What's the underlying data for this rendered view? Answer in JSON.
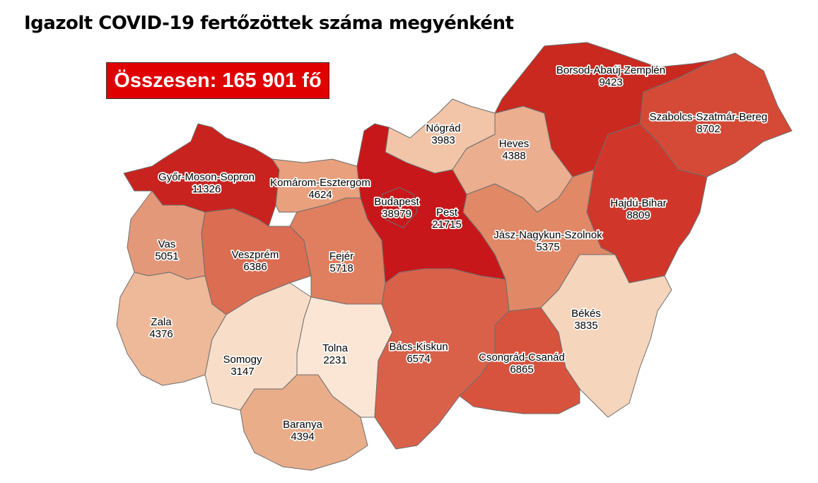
{
  "title": "Igazolt COVID-19 fertőzöttek száma megyénként",
  "total_label": "Összesen: 165 901 fő",
  "counties": [
    {
      "id": "gyor",
      "name": "Győr-Moson-Sopron",
      "value": "11326",
      "color": "#c9231f"
    },
    {
      "id": "komarom",
      "name": "Komárom-Esztergom",
      "value": "4624",
      "color": "#e8a07d"
    },
    {
      "id": "vas",
      "name": "Vas",
      "value": "5051",
      "color": "#e4987a"
    },
    {
      "id": "veszprem",
      "name": "Veszprém",
      "value": "6386",
      "color": "#da6d52"
    },
    {
      "id": "fejer",
      "name": "Fejér",
      "value": "5718",
      "color": "#e07f5f"
    },
    {
      "id": "zala",
      "name": "Zala",
      "value": "4376",
      "color": "#eeb999"
    },
    {
      "id": "somogy",
      "name": "Somogy",
      "value": "3147",
      "color": "#f8ddc8"
    },
    {
      "id": "tolna",
      "name": "Tolna",
      "value": "2231",
      "color": "#fbe6d5"
    },
    {
      "id": "baranya",
      "name": "Baranya",
      "value": "4394",
      "color": "#e9ad8a"
    },
    {
      "id": "pest",
      "name": "Pest",
      "value": "21715",
      "color": "#c8171a"
    },
    {
      "id": "budapest",
      "name": "Budapest",
      "value": "38979",
      "color": "#c8171a"
    },
    {
      "id": "nograd",
      "name": "Nógrád",
      "value": "3983",
      "color": "#f2c5a8"
    },
    {
      "id": "heves",
      "name": "Heves",
      "value": "4388",
      "color": "#ebae8f"
    },
    {
      "id": "borsod",
      "name": "Borsod-Abaúj-Zemplén",
      "value": "9423",
      "color": "#c9291f"
    },
    {
      "id": "szabolcs",
      "name": "Szabolcs-Szatmár-Bereg",
      "value": "8702",
      "color": "#d44a37"
    },
    {
      "id": "hajdu",
      "name": "Hajdú-Bihar",
      "value": "8809",
      "color": "#d0372a"
    },
    {
      "id": "jasz",
      "name": "Jász-Nagykun-Szolnok",
      "value": "5375",
      "color": "#e18866"
    },
    {
      "id": "bekes",
      "name": "Békés",
      "value": "3835",
      "color": "#f5d5bb"
    },
    {
      "id": "bacs",
      "name": "Bács-Kiskun",
      "value": "6574",
      "color": "#d9614a"
    },
    {
      "id": "csongrad",
      "name": "Csongrád-Csanád",
      "value": "6865",
      "color": "#d8533d"
    }
  ]
}
